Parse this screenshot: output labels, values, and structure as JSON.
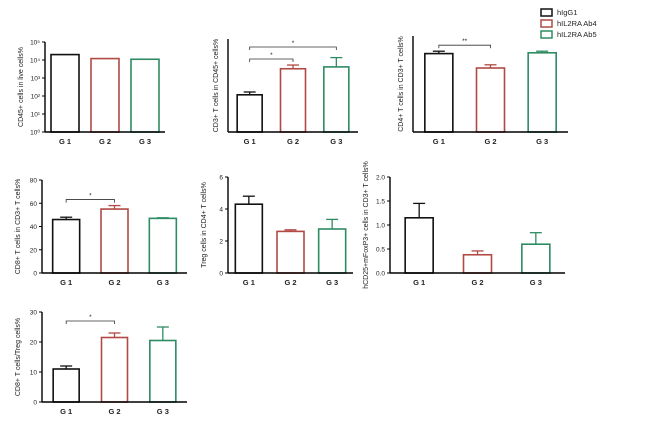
{
  "colors": {
    "hIgG1": "#111111",
    "hIL2RA Ab4": "#b14a44",
    "hIL2RA Ab5": "#2e8b62"
  },
  "legend": [
    "hIgG1",
    "hIL2RA Ab4",
    "hIL2RA Ab5"
  ],
  "chart_data": [
    {
      "type": "bar",
      "ylabel": "CD45+ cells in live cells%",
      "scale": "log",
      "categories": [
        "G 1",
        "G 2",
        "G 3"
      ],
      "values": [
        20000,
        12000,
        11000
      ],
      "errors": [
        null,
        null,
        null
      ],
      "ylim": [
        1,
        100000
      ],
      "ytick_labels": [
        "10⁵",
        "10⁴",
        "10³",
        "10²",
        "10¹",
        "10⁰"
      ],
      "significance": []
    },
    {
      "type": "bar",
      "ylabel": "CD3+ T cells in CD45+ cells%",
      "scale": "linear",
      "categories": [
        "G 1",
        "G 2",
        "G 3"
      ],
      "values": [
        20,
        34,
        35
      ],
      "errors": [
        1.5,
        2,
        5
      ],
      "ylim": [
        0,
        50
      ],
      "yticks": [],
      "significance": [
        {
          "from": 0,
          "to": 1,
          "label": "*"
        },
        {
          "from": 0,
          "to": 2,
          "label": "*"
        }
      ]
    },
    {
      "type": "bar",
      "ylabel": "CD4+ T cells in CD3+ T cells%",
      "scale": "linear",
      "categories": [
        "G 1",
        "G 2",
        "G 3"
      ],
      "values": [
        49,
        40,
        49.5
      ],
      "errors": [
        1.5,
        2,
        1
      ],
      "ylim": [
        0,
        60
      ],
      "yticks": [],
      "significance": [
        {
          "from": 0,
          "to": 1,
          "label": "**"
        }
      ]
    },
    {
      "type": "bar",
      "ylabel": "CD8+ T cells in CD3+ T cells%",
      "scale": "linear",
      "categories": [
        "G 1",
        "G 2",
        "G 3"
      ],
      "values": [
        46,
        55,
        47
      ],
      "errors": [
        2,
        3,
        0.5
      ],
      "ylim": [
        0,
        80
      ],
      "yticks": [
        0,
        20,
        40,
        60,
        80
      ],
      "significance": [
        {
          "from": 0,
          "to": 1,
          "label": "*"
        }
      ]
    },
    {
      "type": "bar",
      "ylabel": "Treg cells in CD4+ T cells%",
      "scale": "linear",
      "categories": [
        "G 1",
        "G 2",
        "G 3"
      ],
      "values": [
        4.3,
        2.6,
        2.75
      ],
      "errors": [
        0.5,
        0.1,
        0.6
      ],
      "ylim": [
        0,
        6
      ],
      "yticks": [
        0,
        2,
        4,
        6
      ],
      "significance": []
    },
    {
      "type": "bar",
      "ylabel": "hCD25+mFoxP3+ cells in CD3+ T cells%",
      "scale": "linear",
      "categories": [
        "G 1",
        "G 2",
        "G 3"
      ],
      "values": [
        1.15,
        0.38,
        0.6
      ],
      "errors": [
        0.3,
        0.08,
        0.24
      ],
      "ylim": [
        0,
        2.0
      ],
      "yticks": [
        0,
        0.5,
        1.0,
        1.5,
        2.0
      ],
      "ytick_labels": [
        "0.0",
        "0.5",
        "1.0",
        "1.5",
        "2.0"
      ],
      "significance": []
    },
    {
      "type": "bar",
      "ylabel": "CD8+ T cells/Treg cells%",
      "scale": "linear",
      "categories": [
        "G 1",
        "G 2",
        "G 3"
      ],
      "values": [
        11,
        21.5,
        20.5
      ],
      "errors": [
        1,
        1.5,
        4.5
      ],
      "ylim": [
        0,
        30
      ],
      "yticks": [
        0,
        10,
        20,
        30
      ],
      "significance": [
        {
          "from": 0,
          "to": 1,
          "label": "*"
        }
      ]
    }
  ]
}
